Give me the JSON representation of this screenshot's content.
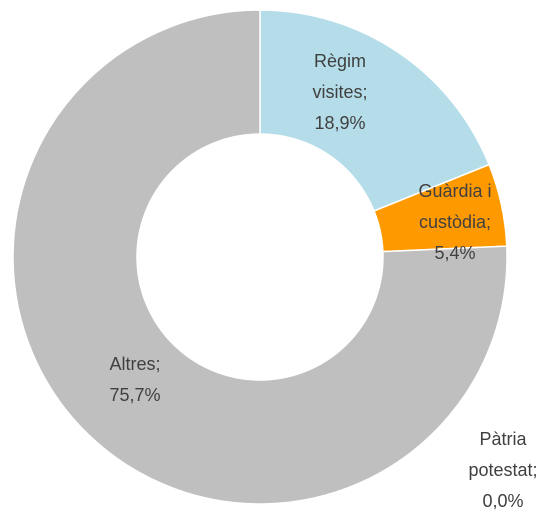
{
  "chart_data": {
    "type": "donut",
    "categories": [
      "Règim visites",
      "Guàrdia i custòdia",
      "Pàtria potestat",
      "Altres"
    ],
    "values": [
      18.9,
      5.4,
      0.0,
      75.7
    ],
    "value_labels": [
      "18,9%",
      "5,4%",
      "0,0%",
      "75,7%"
    ],
    "label_separator": ";",
    "colors": [
      "#b4dde9",
      "#ff9900",
      "#4472c4",
      "#bfbfbf"
    ]
  }
}
